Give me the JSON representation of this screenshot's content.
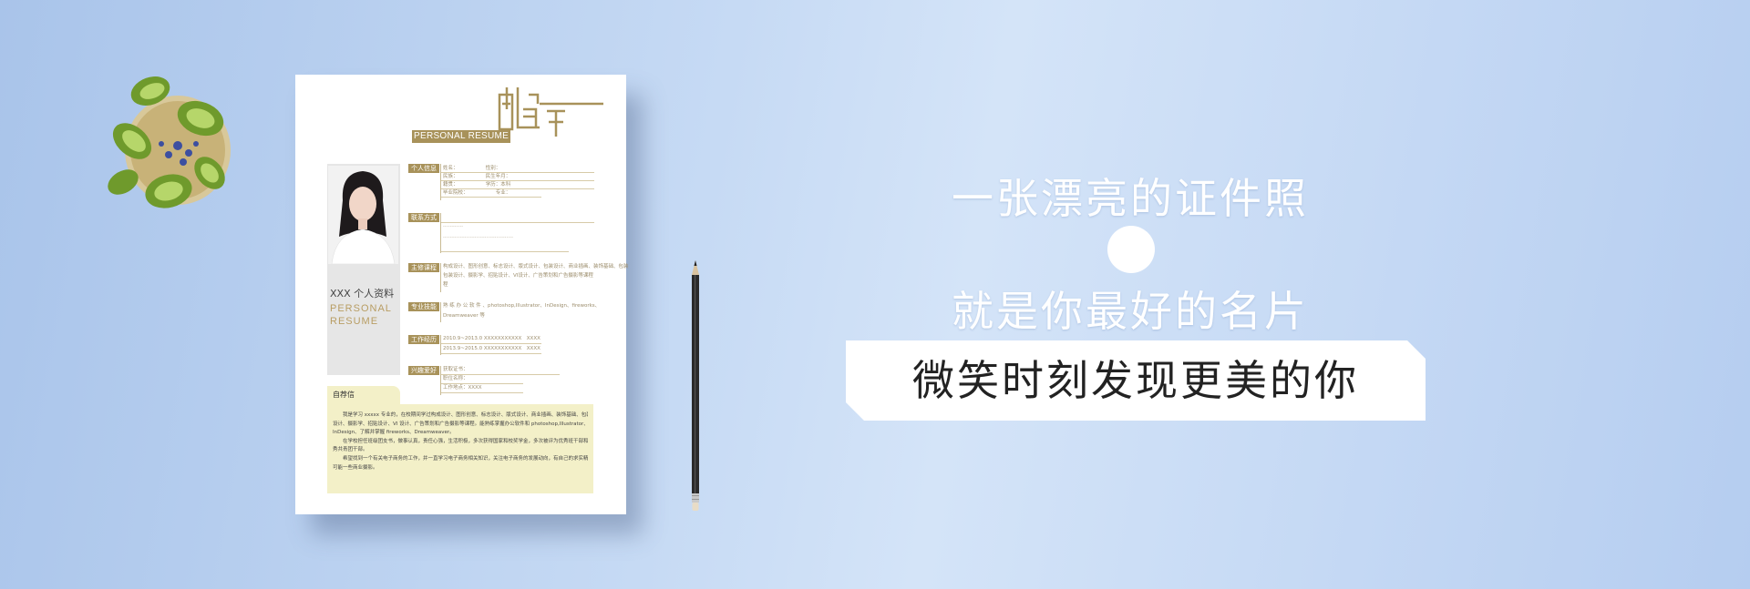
{
  "resume": {
    "subtitle": "PERSONAL RESUME",
    "name_title": "XXX 个人资料",
    "name_en_line1": "PERSONAL",
    "name_en_line2": "RESUME",
    "sections": [
      {
        "label": "个人信息",
        "lines": [
          "姓名：　　　　　　性别：",
          "民族：　　　　　　民生年月：",
          "籍贯：　　　　　　学历：本科",
          "毕业院校：　　　　　　专业："
        ]
      },
      {
        "label": "联系方式",
        "lines": [
          "",
          "…………",
          "……………………………………"
        ]
      },
      {
        "label": "主修课程",
        "lines": [
          "构成设计、图形创意、标志设计、版式设计、包装设计、商业插画、装饰基础、包装",
          "包装设计、摄影学、招贴设计、VI设计、广告策划和广告摄影等课程",
          "程"
        ]
      },
      {
        "label": "专业技能",
        "lines": [
          "熟 练 办 公 软 件 、photoshop,Illustrator、InDesign、fireworks、",
          "Dreamweaver 等"
        ]
      },
      {
        "label": "工作经历",
        "lines": [
          "2010.9~2013.0  XXXXXXXXXXX　XXXX",
          "2013.9~2015.0  XXXXXXXXXXX　XXXX"
        ]
      },
      {
        "label": "兴趣爱好",
        "lines": [
          "获取证书：",
          "职位名称：",
          "工作地点：XXXX"
        ]
      }
    ],
    "letter_title": "自荐信",
    "letter_lines": [
      "　　我是学习 xxxxx 专业的，在校期间学过构成设计、图形创意、标志设计、版式设计、商业插画、装饰基础、包装",
      "设计、摄影学、招贴设计、VI 设计、广告策划和广告摄影等课程。能熟练掌握办公软件和 photoshop,Illustrator、",
      "InDesign、了解并掌握 fireworks、Dreamweaver。",
      "　　在学校担任班级团支书，做事认真，责任心强，生活积极，多次获得国家和校奖学金，多次被评为优秀班干部和优",
      "秀共青团干部。",
      "　　希望找到一个有关电子商务的工作，并一直学习电子商务相关知识，关注电子商务的发展动向，有自己的求实精机",
      "可能一些商业摄影。"
    ]
  },
  "headline": {
    "line1": "一张漂亮的证件照",
    "line2": "就是你最好的名片",
    "banner": "微笑时刻发现更美的你"
  },
  "colors": {
    "gold": "#a8925a",
    "letter_bg": "#f3f0c8"
  }
}
